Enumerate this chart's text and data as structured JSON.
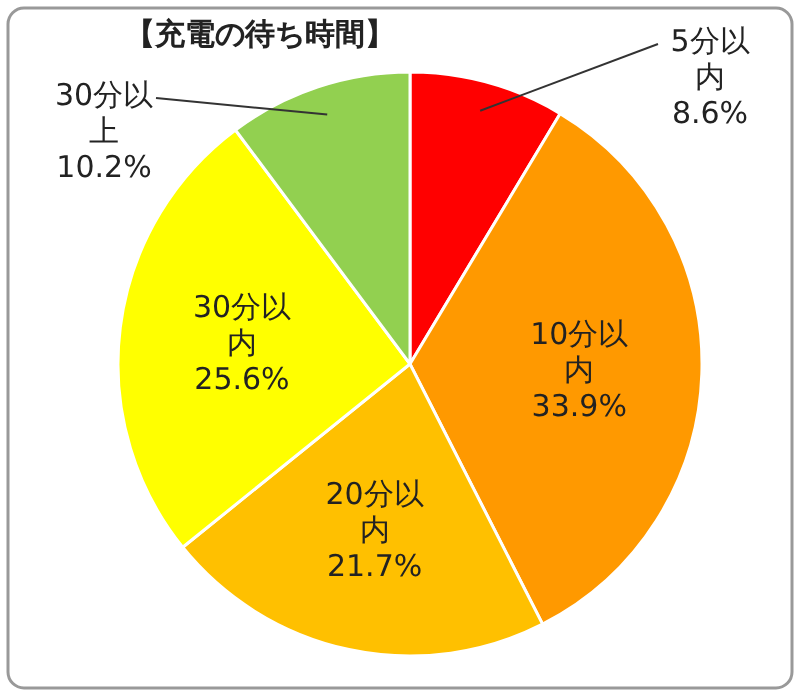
{
  "chart_data": {
    "type": "pie",
    "title": "【充電の待ち時間】",
    "categories": [
      "5分以内",
      "10分以内",
      "20分以内",
      "30分以内",
      "30分以上"
    ],
    "values": [
      8.6,
      33.9,
      21.7,
      25.6,
      10.2
    ],
    "value_labels": [
      "8.6%",
      "33.9%",
      "21.7%",
      "25.6%",
      "10.2%"
    ],
    "colors": [
      "#ff0000",
      "#ff9900",
      "#ffc000",
      "#ffff00",
      "#92d050"
    ]
  }
}
